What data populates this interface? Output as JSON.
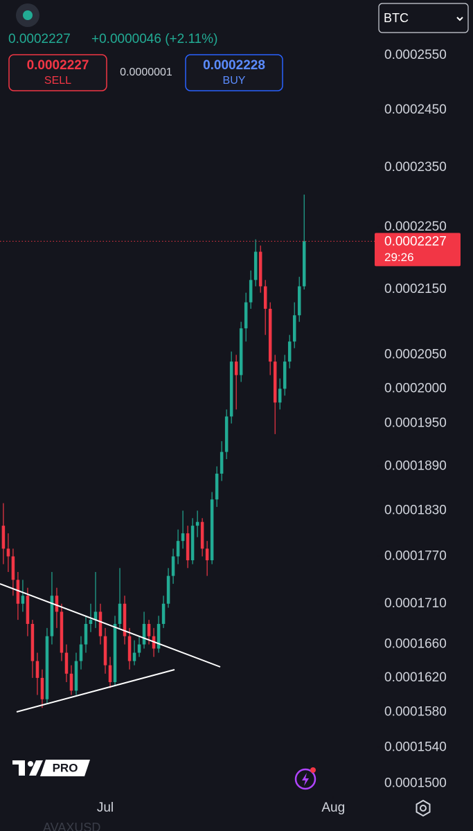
{
  "header": {
    "price": "0.0002227",
    "change": "+0.0000046 (+2.11%)",
    "sell_price": "0.0002227",
    "sell_label": "SELL",
    "spread": "0.0000001",
    "buy_price": "0.0002228",
    "buy_label": "BUY",
    "currency": "BTC",
    "logo": "PRO",
    "symbol": "AVAXUSD"
  },
  "chart_data": {
    "type": "candlestick",
    "log_scale": true,
    "up_color": "#22ab94",
    "down_color": "#f23645",
    "open": [
      0.000181,
      0.000178,
      0.000177,
      0.000174,
      0.000171,
      0.000172,
      0.0001685,
      0.000164,
      0.000162,
      0.0001595,
      0.000167,
      0.000172,
      0.00017,
      0.000165,
      0.0001625,
      0.0001605,
      0.000164,
      0.000166,
      0.0001685,
      0.000169,
      0.00017,
      0.000167,
      0.0001635,
      0.0001615,
      0.0001685,
      0.000171,
      0.000167,
      0.000164,
      0.000165,
      0.000166,
      0.0001685,
      0.000167,
      0.0001655,
      0.0001685,
      0.000171,
      0.0001745,
      0.000177,
      0.000179,
      0.00018,
      0.0001765,
      0.000181,
      0.0001815,
      0.000178,
      0.0001765,
      0.0001845,
      0.000188,
      0.000191,
      0.000196,
      0.000204,
      0.000202,
      0.000209,
      0.000213,
      0.0002165,
      0.000221,
      0.0002155,
      0.000212,
      0.000204,
      0.000198,
      0.0002,
      0.000204,
      0.000207,
      0.000211,
      0.0002155
    ],
    "high": [
      0.000184,
      0.00018,
      0.000178,
      0.000175,
      0.000174,
      0.000173,
      0.000169,
      0.000165,
      0.000163,
      0.000168,
      0.000175,
      0.000173,
      0.000171,
      0.000166,
      0.0001635,
      0.000165,
      0.000167,
      0.0001695,
      0.000171,
      0.000175,
      0.000171,
      0.000168,
      0.0001645,
      0.0001695,
      0.0001755,
      0.000172,
      0.000168,
      0.0001665,
      0.000167,
      0.00017,
      0.000169,
      0.000168,
      0.0001695,
      0.000172,
      0.0001755,
      0.000178,
      0.0001805,
      0.000183,
      0.000181,
      0.000182,
      0.000183,
      0.000182,
      0.000179,
      0.0001855,
      0.000189,
      0.0001925,
      0.000197,
      0.0002055,
      0.000205,
      0.00021,
      0.0002145,
      0.000218,
      0.000223,
      0.000222,
      0.0002165,
      0.000213,
      0.000205,
      0.0002015,
      0.000205,
      0.000208,
      0.000213,
      0.000217,
      0.0002304
    ],
    "low": [
      0.000176,
      0.000175,
      0.000172,
      0.000169,
      0.00017,
      0.000167,
      0.000162,
      0.00016,
      0.0001585,
      0.000159,
      0.000166,
      0.000168,
      0.000164,
      0.0001615,
      0.00016,
      0.00016,
      0.000163,
      0.000165,
      0.0001675,
      0.000168,
      0.000166,
      0.0001625,
      0.0001608,
      0.000161,
      0.000168,
      0.000166,
      0.000163,
      0.0001635,
      0.0001645,
      0.0001655,
      0.000166,
      0.0001645,
      0.000165,
      0.000168,
      0.0001705,
      0.0001735,
      0.000176,
      0.000178,
      0.0001755,
      0.000176,
      0.0001795,
      0.000177,
      0.0001745,
      0.000176,
      0.0001835,
      0.000187,
      0.00019,
      0.000195,
      0.000197,
      0.000201,
      0.000207,
      0.000212,
      0.0002155,
      0.0002145,
      0.000208,
      0.000202,
      0.0001935,
      0.000197,
      0.000199,
      0.000203,
      0.000206,
      0.00021,
      0.000215
    ],
    "close": [
      0.000178,
      0.000177,
      0.000174,
      0.000171,
      0.000172,
      0.0001685,
      0.000164,
      0.000162,
      0.0001595,
      0.000167,
      0.000172,
      0.00017,
      0.000165,
      0.0001625,
      0.0001605,
      0.000164,
      0.000166,
      0.0001685,
      0.000169,
      0.00017,
      0.000167,
      0.0001635,
      0.0001615,
      0.0001685,
      0.000171,
      0.000167,
      0.000164,
      0.000165,
      0.000166,
      0.0001685,
      0.000167,
      0.0001655,
      0.0001685,
      0.000171,
      0.0001745,
      0.000177,
      0.000179,
      0.00018,
      0.0001765,
      0.000181,
      0.0001815,
      0.000178,
      0.0001765,
      0.0001845,
      0.000188,
      0.000191,
      0.000196,
      0.000204,
      0.000202,
      0.000209,
      0.000213,
      0.0002165,
      0.000221,
      0.0002155,
      0.000212,
      0.000204,
      0.000198,
      0.0002,
      0.000204,
      0.000207,
      0.000211,
      0.0002155,
      0.0002227
    ],
    "last": {
      "value": 0.0002227,
      "label": "0.0002227"
    },
    "countdown": "29:26",
    "ylim": [
      0.0001486,
      0.0002655
    ],
    "yticks": [
      {
        "value": 0.000255,
        "label": "0.0002550"
      },
      {
        "value": 0.000245,
        "label": "0.0002450"
      },
      {
        "value": 0.000235,
        "label": "0.0002350"
      },
      {
        "value": 0.000225,
        "label": "0.0002250"
      },
      {
        "value": 0.000215,
        "label": "0.0002150"
      },
      {
        "value": 0.000205,
        "label": "0.0002050"
      },
      {
        "value": 0.0002,
        "label": "0.0002000"
      },
      {
        "value": 0.000195,
        "label": "0.0001950"
      },
      {
        "value": 0.000189,
        "label": "0.0001890"
      },
      {
        "value": 0.000183,
        "label": "0.0001830"
      },
      {
        "value": 0.000177,
        "label": "0.0001770"
      },
      {
        "value": 0.000171,
        "label": "0.0001710"
      },
      {
        "value": 0.000166,
        "label": "0.0001660"
      },
      {
        "value": 0.000162,
        "label": "0.0001620"
      },
      {
        "value": 0.000158,
        "label": "0.0001580"
      },
      {
        "value": 0.000154,
        "label": "0.0001540"
      },
      {
        "value": 0.00015,
        "label": "0.0001500"
      }
    ],
    "xlim": [
      -0.7,
      77.1
    ],
    "xticks": [
      {
        "value": 21,
        "label": "Jul"
      },
      {
        "value": 68,
        "label": "Aug"
      }
    ]
  }
}
